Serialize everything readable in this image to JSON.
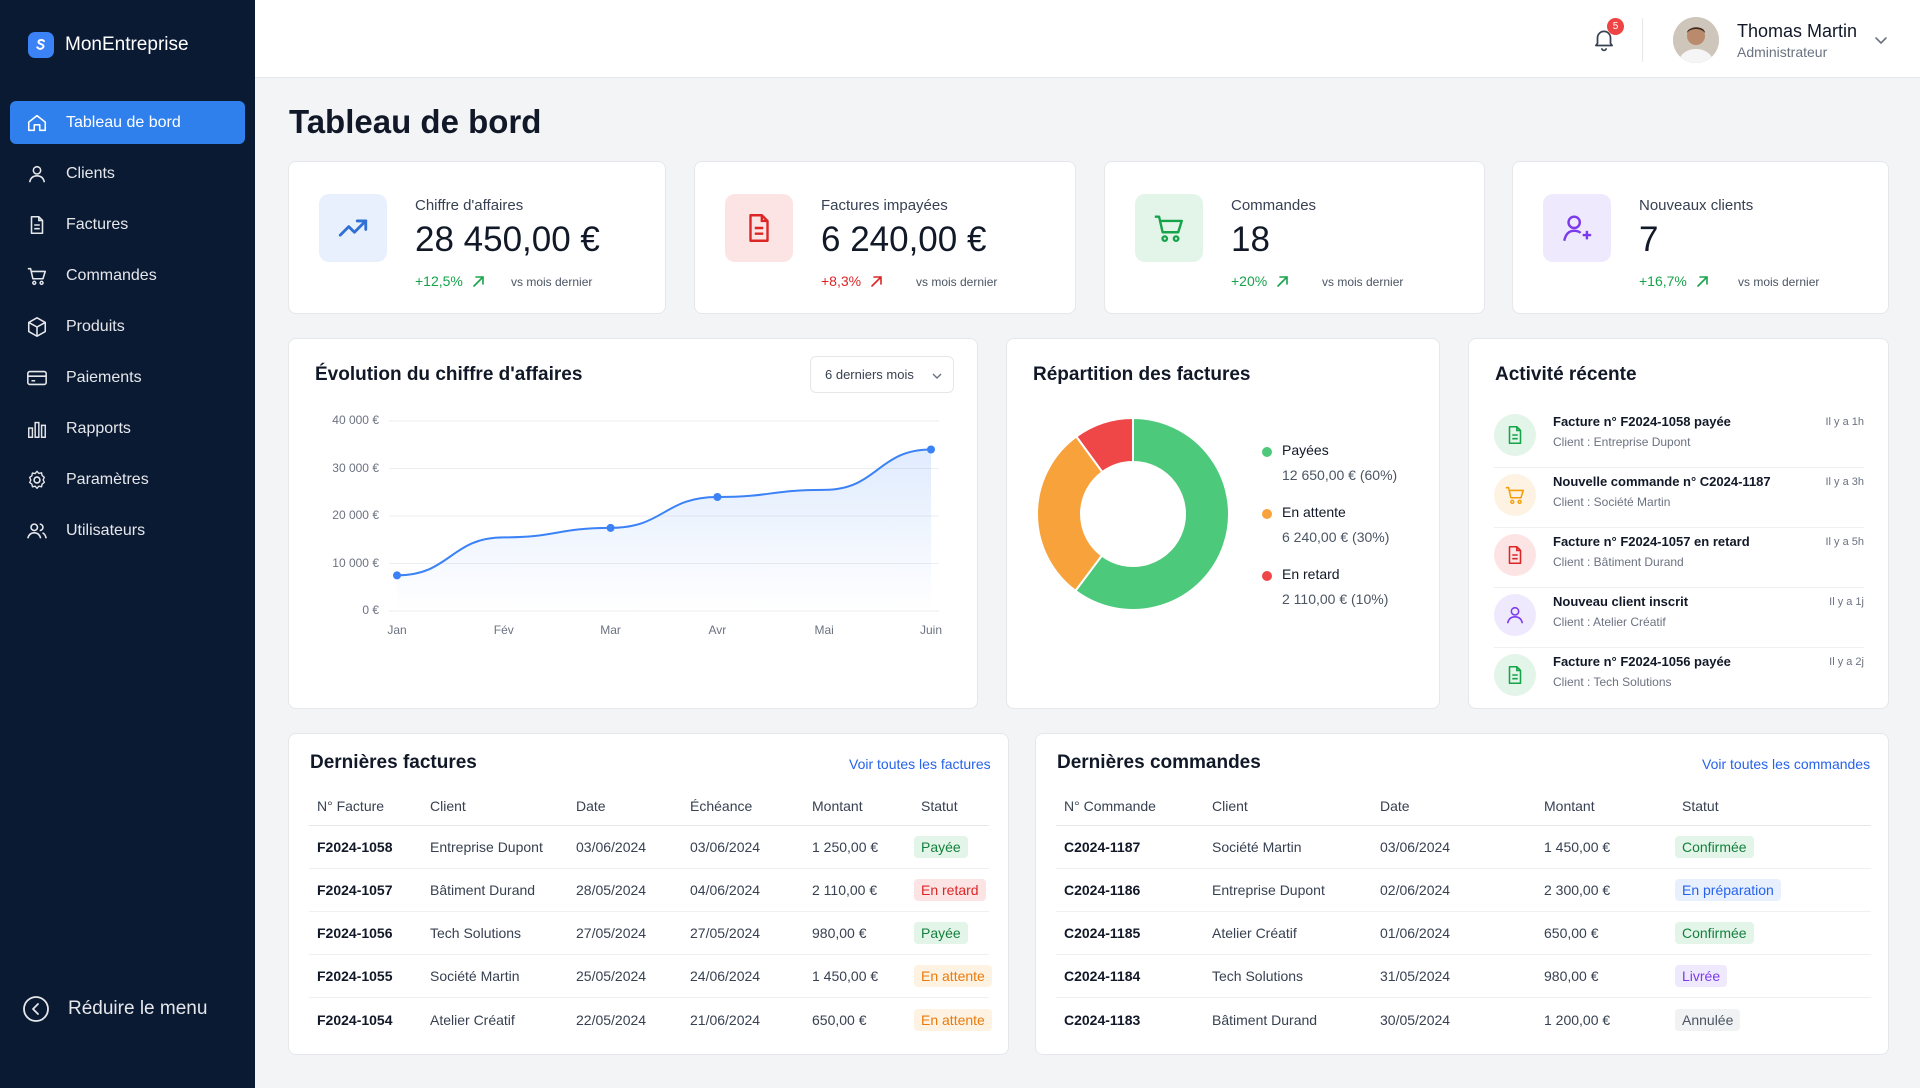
{
  "app": {
    "name": "MonEntreprise"
  },
  "sidebar": {
    "items": [
      {
        "label": "Tableau de bord",
        "icon": "home-icon"
      },
      {
        "label": "Clients",
        "icon": "user-icon"
      },
      {
        "label": "Factures",
        "icon": "document-icon"
      },
      {
        "label": "Commandes",
        "icon": "cart-icon"
      },
      {
        "label": "Produits",
        "icon": "box-icon"
      },
      {
        "label": "Paiements",
        "icon": "credit-card-icon"
      },
      {
        "label": "Rapports",
        "icon": "bar-chart-icon"
      },
      {
        "label": "Paramètres",
        "icon": "gear-icon"
      },
      {
        "label": "Utilisateurs",
        "icon": "users-icon"
      }
    ],
    "active_index": 0,
    "collapse_label": "Réduire le menu"
  },
  "topbar": {
    "notifications_count": "5",
    "user_name": "Thomas Martin",
    "user_role": "Administrateur"
  },
  "page": {
    "title": "Tableau de bord"
  },
  "kpis": [
    {
      "label": "Chiffre d'affaires",
      "value": "28 450,00 €",
      "trend": "+12,5%",
      "direction": "up",
      "trend_color": "#16a34a",
      "comparison": "vs mois dernier",
      "icon": "trending-up-icon",
      "icon_color": "#2f6fd6",
      "icon_bg": "#e8f0fe"
    },
    {
      "label": "Factures impayées",
      "value": "6 240,00 €",
      "trend": "+8,3%",
      "direction": "up",
      "trend_color": "#dc2626",
      "comparison": "vs mois dernier",
      "icon": "invoice-icon",
      "icon_color": "#dc2626",
      "icon_bg": "#fde4e4"
    },
    {
      "label": "Commandes",
      "value": "18",
      "trend": "+20%",
      "direction": "up",
      "trend_color": "#16a34a",
      "comparison": "vs mois dernier",
      "icon": "cart-icon",
      "icon_color": "#16a34a",
      "icon_bg": "#e3f5e9"
    },
    {
      "label": "Nouveaux clients",
      "value": "7",
      "trend": "+16,7%",
      "direction": "up",
      "trend_color": "#16a34a",
      "comparison": "vs mois dernier",
      "icon": "user-plus-icon",
      "icon_color": "#7c3aed",
      "icon_bg": "#efe9fe"
    }
  ],
  "revenue_chart": {
    "title": "Évolution du chiffre d'affaires",
    "period_select": "6 derniers mois",
    "line_color": "#3b82f6"
  },
  "chart_data": [
    {
      "type": "line",
      "title": "Évolution du chiffre d'affaires",
      "x": [
        "Jan",
        "Fév",
        "Mar",
        "Avr",
        "Mai",
        "Juin"
      ],
      "series": [
        {
          "values": [
            7500,
            15500,
            17500,
            24000,
            25500,
            34000
          ]
        }
      ],
      "ylim": [
        0,
        40000
      ],
      "yticks": [
        "0 €",
        "10 000 €",
        "20 000 €",
        "30 000 €",
        "40 000 €"
      ],
      "grid": true
    },
    {
      "type": "pie",
      "title": "Répartition des factures",
      "labels": [
        "Payées",
        "En attente",
        "En retard"
      ],
      "values": [
        12650,
        6240,
        2110
      ],
      "colors": [
        "#4cc97a",
        "#f7a23b",
        "#ef4747"
      ]
    }
  ],
  "invoice_split": {
    "title": "Répartition des factures",
    "items": [
      {
        "name": "Payées",
        "detail": "12 650,00 € (60%)",
        "color": "#4cc97a"
      },
      {
        "name": "En attente",
        "detail": "6 240,00 € (30%)",
        "color": "#f7a23b"
      },
      {
        "name": "En retard",
        "detail": "2 110,00 € (10%)",
        "color": "#ef4747"
      }
    ]
  },
  "activity": {
    "title": "Activité récente",
    "items": [
      {
        "title": "Facture n° F2024-1058 payée",
        "sub": "Client : Entreprise Dupont",
        "time": "Il y a 1h",
        "icon": "document-icon",
        "color": "#16a34a",
        "bg": "#e3f5e9"
      },
      {
        "title": "Nouvelle commande n° C2024-1187",
        "sub": "Client : Société Martin",
        "time": "Il y a 3h",
        "icon": "cart-icon",
        "color": "#f59e0b",
        "bg": "#fef3e2"
      },
      {
        "title": "Facture n° F2024-1057 en retard",
        "sub": "Client : Bâtiment Durand",
        "time": "Il y a 5h",
        "icon": "document-icon",
        "color": "#dc2626",
        "bg": "#fde4e4"
      },
      {
        "title": "Nouveau client inscrit",
        "sub": "Client : Atelier Créatif",
        "time": "Il y a 1j",
        "icon": "user-icon",
        "color": "#7c3aed",
        "bg": "#efe9fe"
      },
      {
        "title": "Facture n° F2024-1056 payée",
        "sub": "Client : Tech Solutions",
        "time": "Il y a 2j",
        "icon": "document-icon",
        "color": "#16a34a",
        "bg": "#e3f5e9"
      }
    ]
  },
  "invoices": {
    "title": "Dernières factures",
    "link": "Voir toutes les factures",
    "columns": [
      "N° Facture",
      "Client",
      "Date",
      "Échéance",
      "Montant",
      "Statut"
    ],
    "rows": [
      {
        "id": "F2024-1058",
        "client": "Entreprise Dupont",
        "date": "03/06/2024",
        "due": "03/06/2024",
        "amount": "1 250,00 €",
        "status": "Payée",
        "status_color": "#15803d",
        "status_bg": "#e3f5e9"
      },
      {
        "id": "F2024-1057",
        "client": "Bâtiment Durand",
        "date": "28/05/2024",
        "due": "04/06/2024",
        "amount": "2 110,00 €",
        "status": "En retard",
        "status_color": "#dc2626",
        "status_bg": "#fde4e4"
      },
      {
        "id": "F2024-1056",
        "client": "Tech Solutions",
        "date": "27/05/2024",
        "due": "27/05/2024",
        "amount": "980,00 €",
        "status": "Payée",
        "status_color": "#15803d",
        "status_bg": "#e3f5e9"
      },
      {
        "id": "F2024-1055",
        "client": "Société Martin",
        "date": "25/05/2024",
        "due": "24/06/2024",
        "amount": "1 450,00 €",
        "status": "En attente",
        "status_color": "#ea7a0c",
        "status_bg": "#fef3e2"
      },
      {
        "id": "F2024-1054",
        "client": "Atelier Créatif",
        "date": "22/05/2024",
        "due": "21/06/2024",
        "amount": "650,00 €",
        "status": "En attente",
        "status_color": "#ea7a0c",
        "status_bg": "#fef3e2"
      }
    ]
  },
  "orders": {
    "title": "Dernières commandes",
    "link": "Voir toutes les commandes",
    "columns": [
      "N° Commande",
      "Client",
      "Date",
      "Montant",
      "Statut"
    ],
    "rows": [
      {
        "id": "C2024-1187",
        "client": "Société Martin",
        "date": "03/06/2024",
        "amount": "1 450,00 €",
        "status": "Confirmée",
        "status_color": "#15803d",
        "status_bg": "#e3f5e9"
      },
      {
        "id": "C2024-1186",
        "client": "Entreprise Dupont",
        "date": "02/06/2024",
        "amount": "2 300,00 €",
        "status": "En préparation",
        "status_color": "#2563eb",
        "status_bg": "#e8f0fe"
      },
      {
        "id": "C2024-1185",
        "client": "Atelier Créatif",
        "date": "01/06/2024",
        "amount": "650,00 €",
        "status": "Confirmée",
        "status_color": "#15803d",
        "status_bg": "#e3f5e9"
      },
      {
        "id": "C2024-1184",
        "client": "Tech Solutions",
        "date": "31/05/2024",
        "amount": "980,00 €",
        "status": "Livrée",
        "status_color": "#7c3aed",
        "status_bg": "#efe9fe"
      },
      {
        "id": "C2024-1183",
        "client": "Bâtiment Durand",
        "date": "30/05/2024",
        "amount": "1 200,00 €",
        "status": "Annulée",
        "status_color": "#4b5563",
        "status_bg": "#f1f2f4"
      }
    ]
  }
}
